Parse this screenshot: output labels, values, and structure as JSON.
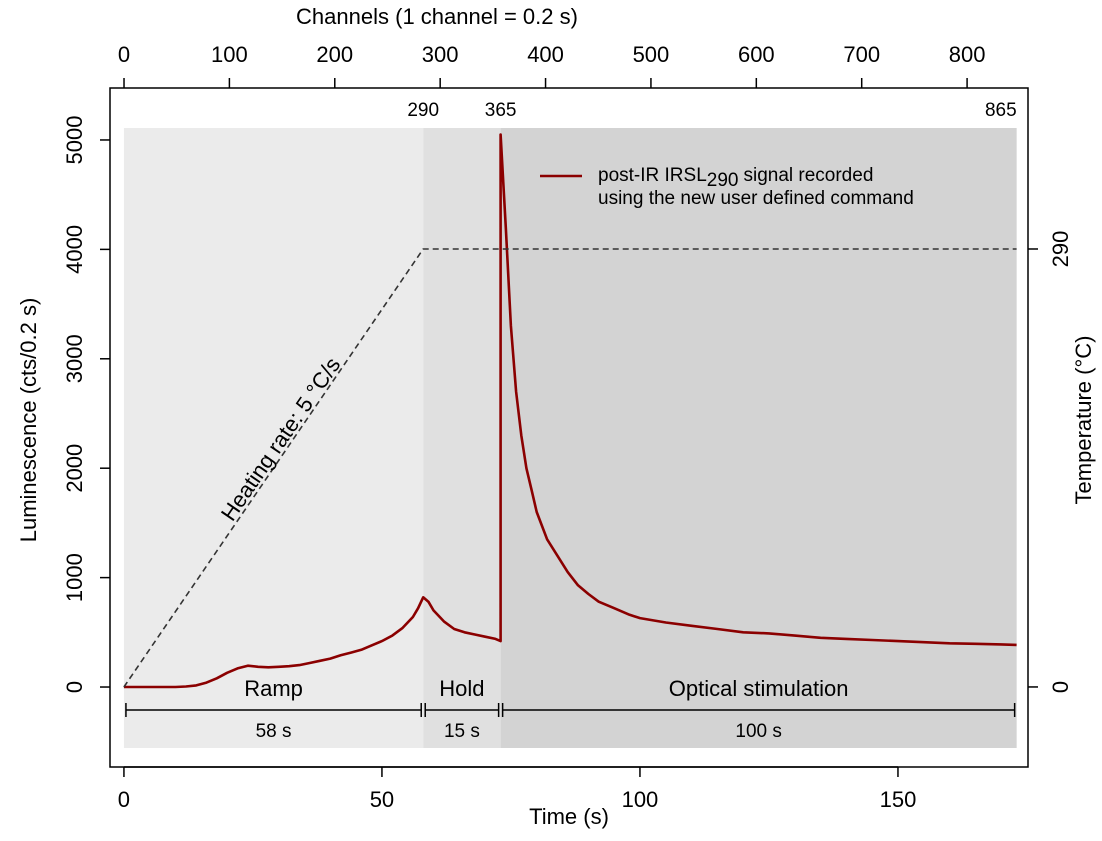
{
  "chart_data": {
    "type": "line",
    "x_label": "Time (s)",
    "y_label": "Luminescence (cts/0.2 s)",
    "y2_label": "Temperature (°C)",
    "x2_label": "Channels (1 channel = 0.2 s)",
    "xlim": [
      -2.7,
      175.2
    ],
    "xticks": [
      0,
      50,
      100,
      150
    ],
    "ylim": [
      -731,
      5475
    ],
    "yticks": [
      0,
      1000,
      2000,
      3000,
      4000,
      5000
    ],
    "y2lim": [
      -53,
      396.6
    ],
    "y2ticks": [
      0,
      290
    ],
    "x2lim": [
      -13.3,
      857.8
    ],
    "x2ticks": [
      0,
      100,
      200,
      300,
      400,
      500,
      600,
      700,
      800
    ],
    "top_markers": {
      "x": [
        58,
        73,
        173
      ],
      "labels": [
        290,
        365,
        865
      ]
    },
    "annotation": "Heating rate: 5 °C/s",
    "phases": [
      {
        "name": "Ramp",
        "start": 0,
        "end": 58,
        "duration": "58 s",
        "color": "#ebebeb"
      },
      {
        "name": "Hold",
        "start": 58,
        "end": 73,
        "duration": "15 s",
        "color": "#e0e0e0"
      },
      {
        "name": "Optical stimulation",
        "start": 73,
        "end": 173,
        "duration": "100 s",
        "color": "#d3d3d3"
      }
    ],
    "series": [
      {
        "name_parts": [
          "post-IR IRSL",
          "290",
          "signal recorded",
          "using the new user defined command"
        ],
        "color": "#8b0000",
        "x": [
          0,
          2,
          4,
          6,
          8,
          10,
          12,
          14,
          16,
          18,
          20,
          22,
          24,
          26,
          28,
          30,
          32,
          34,
          36,
          38,
          40,
          42,
          44,
          46,
          48,
          50,
          52,
          54,
          56,
          57,
          58,
          59,
          60,
          62,
          64,
          66,
          68,
          70,
          72,
          73,
          73,
          74,
          75,
          76,
          77,
          78,
          79,
          80,
          82,
          84,
          86,
          88,
          90,
          92,
          95,
          98,
          100,
          105,
          110,
          115,
          120,
          125,
          130,
          135,
          140,
          145,
          150,
          155,
          160,
          165,
          170,
          173
        ],
        "values": [
          0,
          0,
          0,
          0,
          0,
          0,
          5,
          15,
          40,
          80,
          130,
          170,
          195,
          185,
          180,
          185,
          190,
          200,
          220,
          240,
          260,
          290,
          315,
          340,
          380,
          420,
          470,
          540,
          640,
          720,
          820,
          780,
          700,
          600,
          530,
          500,
          480,
          460,
          440,
          420,
          5050,
          4200,
          3300,
          2700,
          2300,
          2000,
          1800,
          1600,
          1350,
          1200,
          1050,
          930,
          850,
          780,
          720,
          660,
          630,
          590,
          560,
          530,
          500,
          490,
          470,
          450,
          440,
          430,
          420,
          410,
          400,
          395,
          390,
          385
        ]
      },
      {
        "axis": "y2",
        "color": "#333333",
        "dashed": true,
        "x": [
          0,
          58,
          173
        ],
        "values": [
          0,
          290,
          290
        ]
      }
    ]
  }
}
